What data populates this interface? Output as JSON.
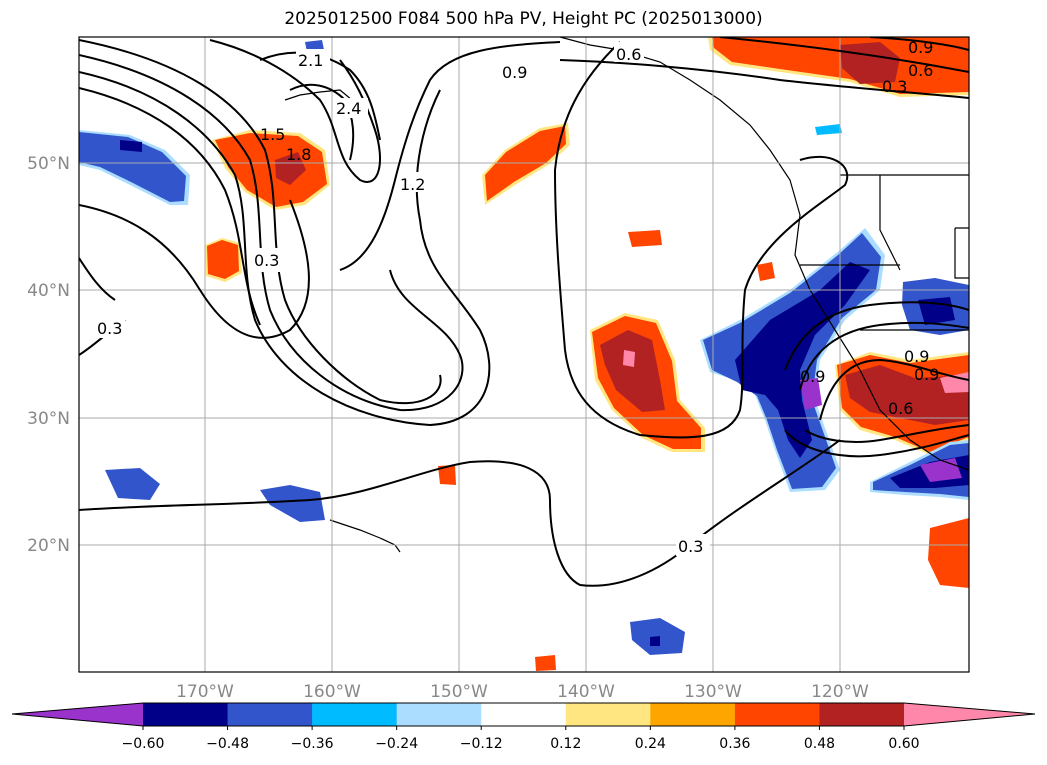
{
  "title": "2025012500 F084 500 hPa PV, Height PC (2025013000)",
  "map": {
    "lat_labels": [
      "50°N",
      "40°N",
      "30°N",
      "20°N"
    ],
    "lon_labels": [
      "170°W",
      "160°W",
      "150°W",
      "140°W",
      "130°W",
      "120°W"
    ],
    "contour_labels": [
      "2.1",
      "2.4",
      "0.9",
      "0.6",
      "0.9",
      "0.6",
      "0.3",
      "1.5",
      "1.8",
      "1.2",
      "0.3",
      "0.3",
      "0.3",
      "0.9",
      "0.9",
      "0.6",
      "0.9"
    ]
  },
  "colorbar": {
    "colors": [
      "#9933cc",
      "#000088",
      "#3355cc",
      "#00bbff",
      "#aaddff",
      "#ffffff",
      "#ffe680",
      "#ffa500",
      "#ff4500",
      "#b22222",
      "#ff88aa"
    ],
    "tick_labels": [
      "−0.60",
      "−0.48",
      "−0.36",
      "−0.24",
      "−0.12",
      "0.12",
      "0.24",
      "0.36",
      "0.48",
      "0.60"
    ]
  }
}
